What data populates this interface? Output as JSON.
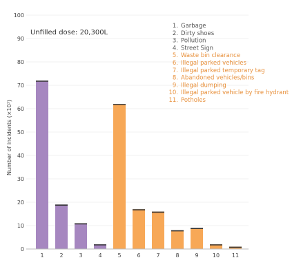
{
  "chart_data": {
    "type": "bar",
    "subtitle": "Unfilled dose: 20,300L",
    "ylabel": "Number of incidents (×10³)",
    "xlabel": "",
    "ylim": [
      0,
      100
    ],
    "yticks": [
      0,
      10,
      20,
      30,
      40,
      50,
      60,
      70,
      80,
      90,
      100
    ],
    "categories": [
      "1",
      "2",
      "3",
      "4",
      "5",
      "6",
      "7",
      "8",
      "9",
      "10",
      "11"
    ],
    "values": [
      72,
      19,
      11,
      2,
      62,
      17,
      16,
      8,
      9,
      2,
      1
    ],
    "bar_colors": [
      "#a687c0",
      "#a687c0",
      "#a687c0",
      "#a687c0",
      "#f7a857",
      "#f7a857",
      "#f7a857",
      "#f7a857",
      "#f7a857",
      "#f7a857",
      "#f7a857"
    ],
    "legend_position": "top-right",
    "legend": [
      {
        "num": "1.",
        "label": "Garbage",
        "color": "#555555"
      },
      {
        "num": "2.",
        "label": "Dirty shoes",
        "color": "#555555"
      },
      {
        "num": "3.",
        "label": "Pollution",
        "color": "#555555"
      },
      {
        "num": "4.",
        "label": "Street Sign",
        "color": "#555555"
      },
      {
        "num": "5.",
        "label": "Waste bin clearance",
        "color": "#e8913d"
      },
      {
        "num": "6.",
        "label": "Illegal parked vehicles",
        "color": "#e8913d"
      },
      {
        "num": "7.",
        "label": "Illegal parked temporary tag",
        "color": "#e8913d"
      },
      {
        "num": "8.",
        "label": "Abandoned vehicles/bins",
        "color": "#e8913d"
      },
      {
        "num": "9.",
        "label": "Illegal dumping",
        "color": "#e8913d"
      },
      {
        "num": "10.",
        "label": "Illegal parked vehicle by fire hydrant",
        "color": "#e8913d"
      },
      {
        "num": "11.",
        "label": "Potholes",
        "color": "#e8913d"
      }
    ]
  }
}
